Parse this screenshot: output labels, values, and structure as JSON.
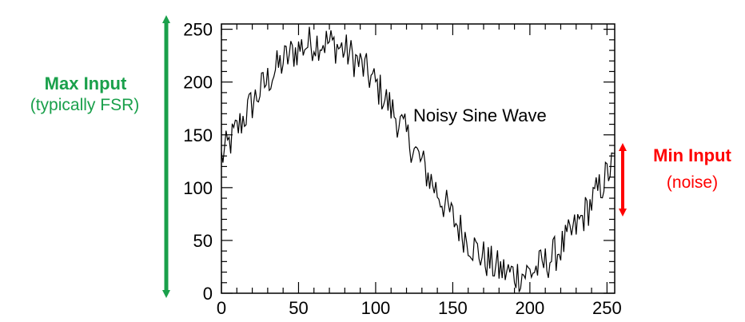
{
  "chart_data": {
    "type": "line",
    "title": "",
    "xlabel": "",
    "ylabel": "",
    "xlim": [
      0,
      255
    ],
    "ylim": [
      0,
      255
    ],
    "x_ticks": [
      0,
      50,
      100,
      150,
      200,
      250
    ],
    "y_ticks": [
      0,
      50,
      100,
      150,
      200,
      250
    ],
    "grid": false,
    "annotation": "Noisy Sine Wave",
    "series": [
      {
        "color": "#000000",
        "description": "noisy sine wave, one period over x 0–255, amplitude ~110 around 128 with noise",
        "x_step": 1,
        "center": 128,
        "amplitude": 110,
        "period": 256,
        "noise_amplitude": 18
      }
    ]
  },
  "annotations": {
    "max_input_title": "Max Input",
    "max_input_sub": "(typically FSR)",
    "min_input_title": "Min Input",
    "min_input_sub": "(noise)",
    "max_color": "#1aa04b",
    "min_color": "#ff0000"
  }
}
